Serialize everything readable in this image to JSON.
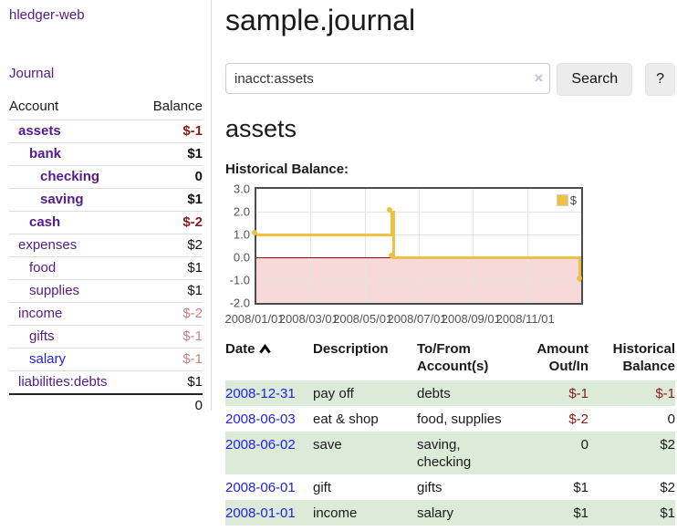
{
  "app": {
    "brand": "hledger-web"
  },
  "colors": {
    "purple": "#551a8b",
    "blue": "#2222dd",
    "neg-strong": "#8b1a1a",
    "neg-soft": "#c98383",
    "stripe": "#dcebd8",
    "gold": "#edc240",
    "pink": "#f8d9d9",
    "zero": "#990000",
    "grid": "#e4e4e4",
    "btn": "#ececec"
  },
  "sidebar": {
    "journal_link": "Journal",
    "accounts": {
      "col_account": "Account",
      "col_balance": "Balance",
      "rows": [
        {
          "name": "assets",
          "indent": 1,
          "bold": true,
          "balance": "$-1",
          "balance_style": "neg-strong"
        },
        {
          "name": "bank",
          "indent": 2,
          "bold": true,
          "balance": "$1",
          "balance_style": "pos"
        },
        {
          "name": "checking",
          "indent": 3,
          "bold": true,
          "balance": "0",
          "balance_style": "pos"
        },
        {
          "name": "saving",
          "indent": 3,
          "bold": true,
          "balance": "$1",
          "balance_style": "pos"
        },
        {
          "name": "cash",
          "indent": 2,
          "bold": true,
          "balance": "$-2",
          "balance_style": "neg-strong"
        },
        {
          "name": "expenses",
          "indent": 1,
          "bold": false,
          "balance": "$2",
          "balance_style": "pos"
        },
        {
          "name": "food",
          "indent": 2,
          "bold": false,
          "balance": "$1",
          "balance_style": "pos"
        },
        {
          "name": "supplies",
          "indent": 2,
          "bold": false,
          "balance": "$1",
          "balance_style": "pos"
        },
        {
          "name": "income",
          "indent": 1,
          "bold": false,
          "balance": "$-2",
          "balance_style": "neg-soft"
        },
        {
          "name": "gifts",
          "indent": 2,
          "bold": false,
          "balance": "$-1",
          "balance_style": "neg-soft"
        },
        {
          "name": "salary",
          "indent": 2,
          "bold": false,
          "blue": true,
          "balance": "$-1",
          "balance_style": "neg-soft"
        },
        {
          "name": "liabilities:debts",
          "indent": 1,
          "bold": false,
          "balance": "$1",
          "balance_style": "pos"
        }
      ],
      "total": "0"
    }
  },
  "main": {
    "title": "sample.journal",
    "search": {
      "value": "inacct:assets",
      "clear_icon": "×",
      "button_label": "Search",
      "help_label": "?"
    },
    "account_heading": "assets",
    "chart_label": "Historical Balance:"
  },
  "chart_data": {
    "type": "line",
    "step": true,
    "title": "Historical Balance:",
    "xlim": [
      0,
      12
    ],
    "ylim": [
      -2,
      3
    ],
    "y_ticks": [
      {
        "v": 3,
        "label": "3.0"
      },
      {
        "v": 2,
        "label": "2.0"
      },
      {
        "v": 1,
        "label": "1.0"
      },
      {
        "v": 0,
        "label": "0.0"
      },
      {
        "v": -1,
        "label": "-1.0"
      },
      {
        "v": -2,
        "label": "-2.0"
      }
    ],
    "x_ticks": [
      {
        "x": 0,
        "label": "2008/01/01"
      },
      {
        "x": 2,
        "label": "2008/03/01"
      },
      {
        "x": 4,
        "label": "2008/05/01"
      },
      {
        "x": 6,
        "label": "2008/07/01"
      },
      {
        "x": 8,
        "label": "2008/09/01"
      },
      {
        "x": 10,
        "label": "2008/11/01"
      }
    ],
    "series": [
      {
        "name": "$",
        "points": [
          {
            "date": "2008-01-01",
            "x": 0,
            "y": 1
          },
          {
            "date": "2008-06-01",
            "x": 5,
            "y": 2
          },
          {
            "date": "2008-06-03",
            "x": 5.07,
            "y": 0
          },
          {
            "date": "2008-12-31",
            "x": 12,
            "y": -1
          }
        ]
      }
    ],
    "legend": {
      "label": "$",
      "position": "top-right"
    },
    "grid": true,
    "negative_region": {
      "from": -2,
      "to": 0
    },
    "zero_line": true
  },
  "register": {
    "headers": [
      {
        "line1": "Date",
        "line2": "",
        "sortable": true,
        "align": "left"
      },
      {
        "line1": "Description",
        "line2": "",
        "align": "left"
      },
      {
        "line1": "To/From",
        "line2": "Account(s)",
        "align": "left"
      },
      {
        "line1": "Amount",
        "line2": "Out/In",
        "align": "right"
      },
      {
        "line1": "Historical",
        "line2": "Balance",
        "align": "right"
      }
    ],
    "rows": [
      {
        "date": "2008-12-31",
        "description": "pay off",
        "accounts": "debts",
        "amount": "$-1",
        "amount_neg": true,
        "balance": "$-1",
        "balance_neg": true
      },
      {
        "date": "2008-06-03",
        "description": "eat & shop",
        "accounts": "food, supplies",
        "amount": "$-2",
        "amount_neg": true,
        "balance": "0",
        "balance_neg": false
      },
      {
        "date": "2008-06-02",
        "description": "save",
        "accounts": "saving, checking",
        "amount": "0",
        "amount_neg": false,
        "balance": "$2",
        "balance_neg": false
      },
      {
        "date": "2008-06-01",
        "description": "gift",
        "accounts": "gifts",
        "amount": "$1",
        "amount_neg": false,
        "balance": "$2",
        "balance_neg": false
      },
      {
        "date": "2008-01-01",
        "description": "income",
        "accounts": "salary",
        "amount": "$1",
        "amount_neg": false,
        "balance": "$1",
        "balance_neg": false
      }
    ]
  }
}
